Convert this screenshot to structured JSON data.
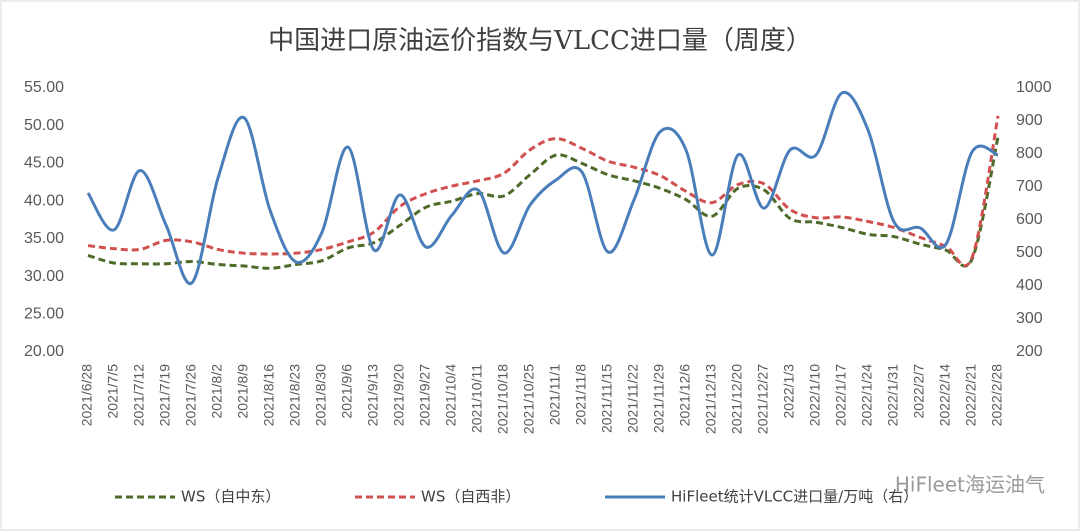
{
  "chart_data": {
    "type": "line",
    "title": "中国进口原油运价指数与VLCC进口量（周度）",
    "categories": [
      "2021/6/28",
      "2021/7/5",
      "2021/7/12",
      "2021/7/19",
      "2021/7/26",
      "2021/8/2",
      "2021/8/9",
      "2021/8/16",
      "2021/8/23",
      "2021/8/30",
      "2021/9/6",
      "2021/9/13",
      "2021/9/20",
      "2021/9/27",
      "2021/10/4",
      "2021/10/11",
      "2021/10/18",
      "2021/10/25",
      "2021/11/1",
      "2021/11/8",
      "2021/11/15",
      "2021/11/22",
      "2021/11/29",
      "2021/12/6",
      "2021/12/13",
      "2021/12/20",
      "2021/12/27",
      "2022/1/3",
      "2022/1/10",
      "2022/1/17",
      "2022/1/24",
      "2022/1/31",
      "2022/2/7",
      "2022/2/14",
      "2022/2/21",
      "2022/2/28"
    ],
    "series": [
      {
        "name": "WS（自中东）",
        "color": "#4e6b2a",
        "dashed": true,
        "values": [
          32.8,
          31.8,
          31.7,
          31.7,
          32.0,
          31.6,
          31.4,
          31.1,
          31.6,
          32.1,
          33.8,
          34.5,
          36.8,
          39.2,
          40.0,
          41.0,
          40.7,
          43.5,
          46.1,
          45.0,
          43.5,
          42.7,
          41.7,
          40.2,
          38.0,
          41.7,
          41.5,
          37.7,
          37.2,
          36.5,
          35.6,
          35.3,
          34.3,
          33.5,
          32.3,
          48.5
        ]
      },
      {
        "name": "WS（自西非）",
        "color": "#d0504f",
        "dashed": true,
        "values": [
          34.1,
          33.7,
          33.6,
          34.8,
          34.6,
          33.6,
          33.1,
          33.0,
          33.1,
          33.6,
          34.6,
          35.9,
          39.3,
          41.0,
          42.0,
          42.7,
          43.7,
          46.8,
          48.3,
          47.0,
          45.3,
          44.5,
          43.4,
          41.3,
          39.8,
          42.2,
          42.3,
          38.9,
          37.8,
          37.9,
          37.3,
          36.5,
          35.2,
          34.0,
          32.5,
          51.3
        ]
      },
      {
        "name": "HiFleet统计VLCC进口量/万吨（右）",
        "color": "#4a7ebb",
        "dashed": false,
        "axis": "y2",
        "values": [
          682,
          570,
          750,
          585,
          410,
          727,
          910,
          630,
          473,
          563,
          821,
          509,
          676,
          518,
          615,
          691,
          500,
          645,
          721,
          745,
          503,
          661,
          867,
          812,
          494,
          797,
          636,
          812,
          797,
          985,
          873,
          594,
          576,
          527,
          806,
          797
        ]
      }
    ],
    "ylim": [
      20,
      55
    ],
    "yticks": [
      {
        "value": 20,
        "label": "20.00"
      },
      {
        "value": 25,
        "label": "25.00"
      },
      {
        "value": 30,
        "label": "30.00"
      },
      {
        "value": 35,
        "label": "35.00"
      },
      {
        "value": 40,
        "label": "40.00"
      },
      {
        "value": 45,
        "label": "45.00"
      },
      {
        "value": 50,
        "label": "50.00"
      },
      {
        "value": 55,
        "label": "55.00"
      }
    ],
    "y2lim": [
      200,
      1000
    ],
    "y2ticks": [
      200,
      300,
      400,
      500,
      600,
      700,
      800,
      900,
      1000
    ],
    "grid": false,
    "legend": "bottom",
    "watermark": "HiFleet海运油气"
  }
}
